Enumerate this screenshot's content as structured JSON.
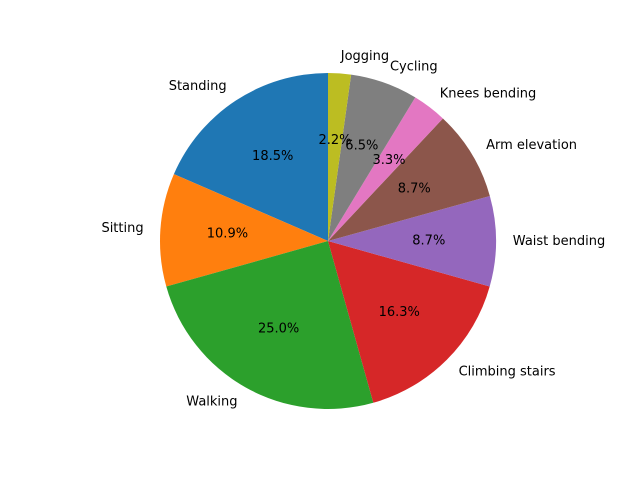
{
  "chart_data": {
    "type": "pie",
    "title": "",
    "start_angle_deg": 90,
    "direction": "counterclockwise",
    "slices": [
      {
        "label": "Standing",
        "value": 18.5,
        "pct_label": "18.5%",
        "color": "#1f77b4"
      },
      {
        "label": "Sitting",
        "value": 10.9,
        "pct_label": "10.9%",
        "color": "#ff7f0e"
      },
      {
        "label": "Walking",
        "value": 25.0,
        "pct_label": "25.0%",
        "color": "#2ca02c"
      },
      {
        "label": "Climbing stairs",
        "value": 16.3,
        "pct_label": "16.3%",
        "color": "#d62728"
      },
      {
        "label": "Waist bending",
        "value": 8.7,
        "pct_label": "8.7%",
        "color": "#9467bd"
      },
      {
        "label": "Arm elevation",
        "value": 8.7,
        "pct_label": "8.7%",
        "color": "#8c564b"
      },
      {
        "label": "Knees bending",
        "value": 3.3,
        "pct_label": "3.3%",
        "color": "#e377c2"
      },
      {
        "label": "Cycling",
        "value": 6.5,
        "pct_label": "6.5%",
        "color": "#7f7f7f"
      },
      {
        "label": "Jogging",
        "value": 2.2,
        "pct_label": "2.2%",
        "color": "#bcbd22"
      }
    ]
  }
}
